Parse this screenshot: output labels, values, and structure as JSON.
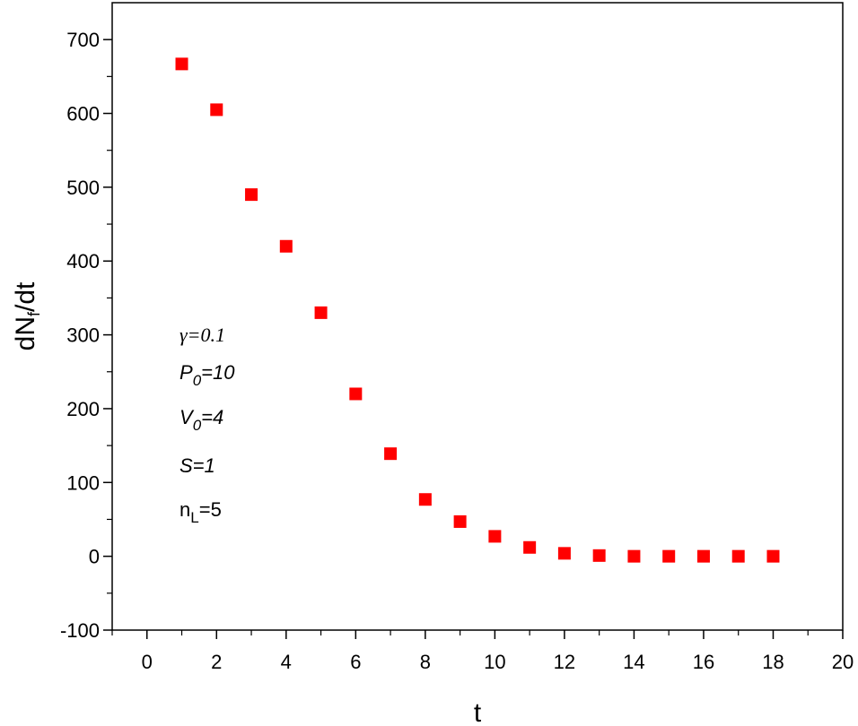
{
  "chart_data": {
    "type": "scatter",
    "xlabel": "t",
    "ylabel": "dN",
    "ylabel_sub": "f",
    "ylabel_suffix": "/dt",
    "xlim": [
      -1,
      20
    ],
    "ylim": [
      -100,
      750
    ],
    "x_ticks": [
      0,
      2,
      4,
      6,
      8,
      10,
      12,
      14,
      16,
      18,
      20
    ],
    "y_ticks": [
      -100,
      0,
      100,
      200,
      300,
      400,
      500,
      600,
      700
    ],
    "grid": false,
    "marker_color": "#ff0000",
    "series": [
      {
        "x": [
          1,
          2,
          3,
          4,
          5,
          6,
          7,
          8,
          9,
          10,
          11,
          12,
          13,
          14,
          15,
          16,
          17,
          18
        ],
        "y": [
          667,
          605,
          490,
          420,
          330,
          220,
          139,
          77,
          47,
          27,
          12,
          4,
          1,
          0,
          0,
          0,
          0,
          0
        ]
      }
    ],
    "annotations": {
      "gamma": {
        "main": "γ=0.1"
      },
      "p0": {
        "main": "P",
        "sub": "0",
        "tail": "=10"
      },
      "v0": {
        "main": "V",
        "sub": "0",
        "tail": "=4"
      },
      "s": {
        "main": "S=1"
      },
      "nl": {
        "main": "n",
        "sub": "L",
        "tail": "=5"
      }
    }
  }
}
